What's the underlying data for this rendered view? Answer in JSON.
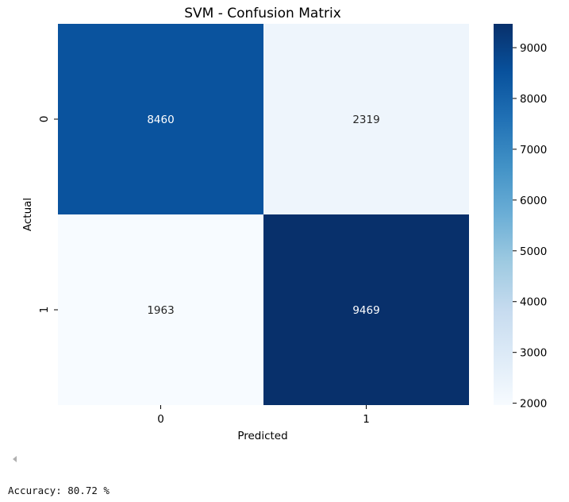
{
  "chart_data": {
    "type": "heatmap",
    "title": "SVM - Confusion Matrix",
    "xlabel": "Predicted",
    "ylabel": "Actual",
    "x_categories": [
      "0",
      "1"
    ],
    "y_categories": [
      "0",
      "1"
    ],
    "values": [
      [
        8460,
        2319
      ],
      [
        1963,
        9469
      ]
    ],
    "colormap": "Blues",
    "colorbar": {
      "range": [
        1963,
        9469
      ],
      "ticks": [
        2000,
        3000,
        4000,
        5000,
        6000,
        7000,
        8000,
        9000
      ],
      "tick_labels": [
        "2000",
        "3000",
        "4000",
        "5000",
        "6000",
        "7000",
        "8000",
        "9000"
      ]
    }
  },
  "output": {
    "accuracy_text": "Accuracy: 80.72 %"
  }
}
